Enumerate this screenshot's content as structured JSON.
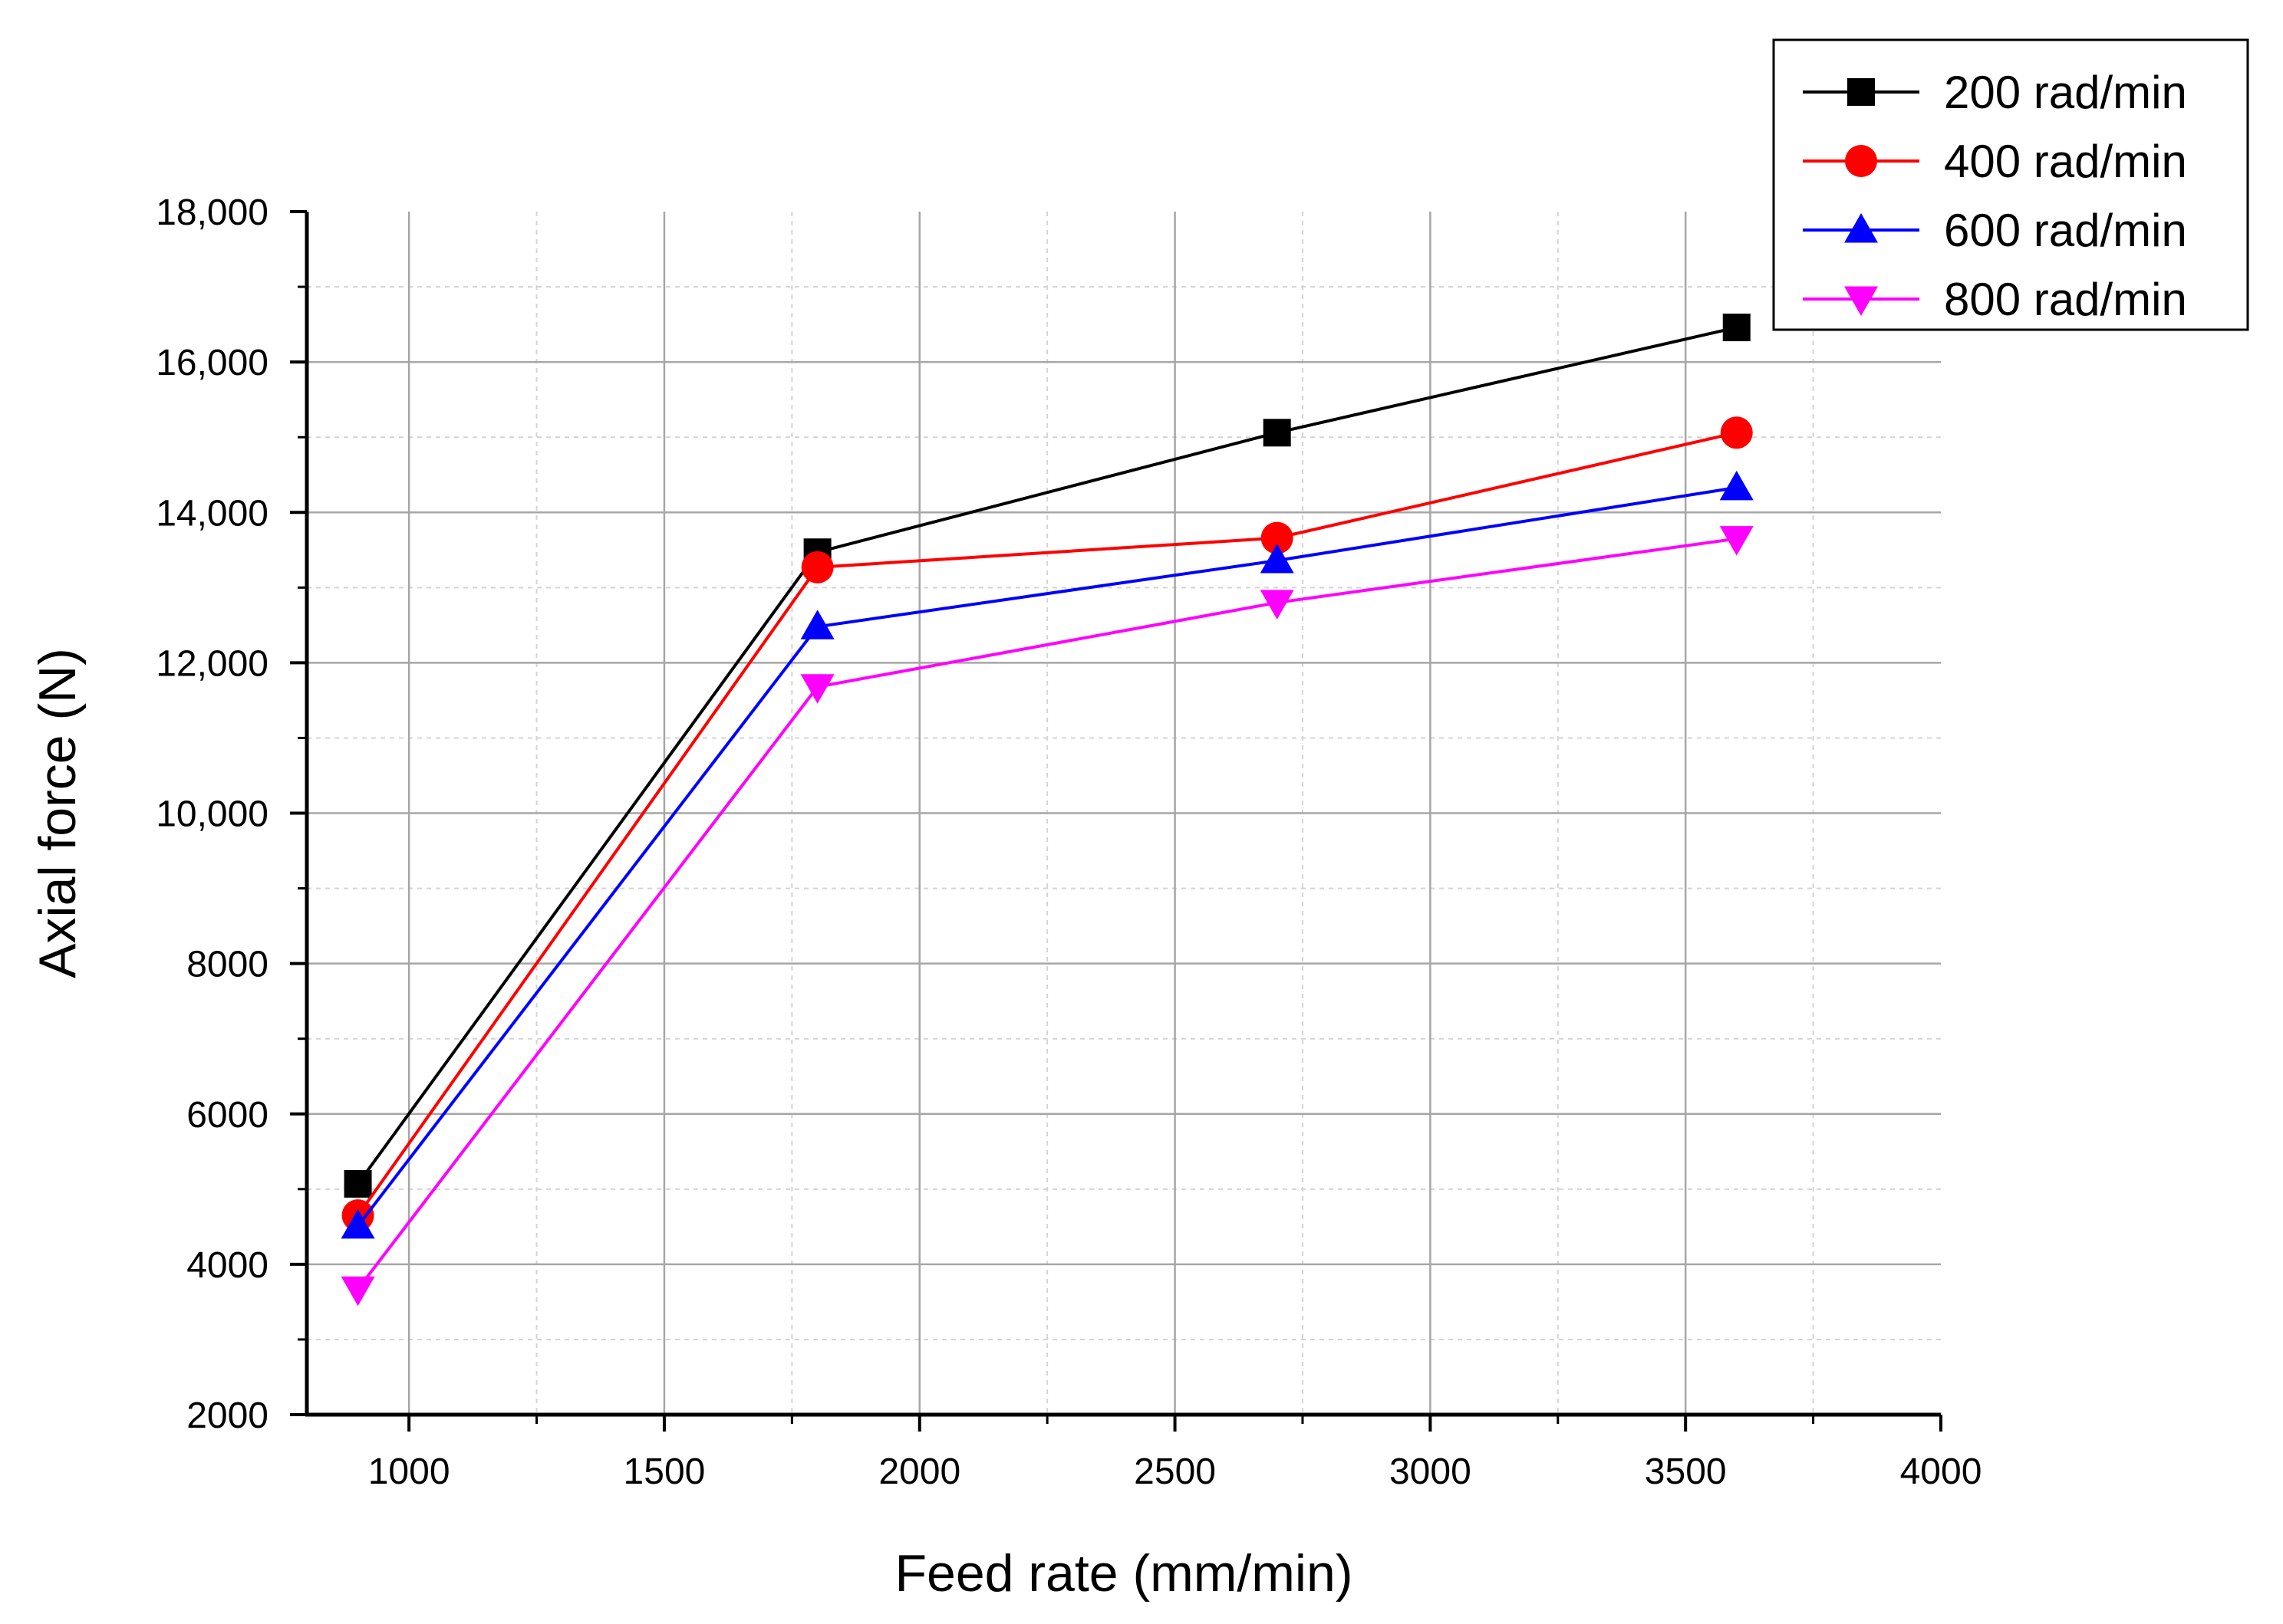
{
  "chart_data": {
    "type": "line",
    "title": "",
    "xlabel": "Feed rate (mm/min)",
    "ylabel": "Axial force (N)",
    "xlim": [
      800,
      4000
    ],
    "ylim": [
      2000,
      18000
    ],
    "x_ticks": [
      1000,
      1500,
      2000,
      2500,
      3000,
      3500,
      4000
    ],
    "x_tick_labels": [
      "1000",
      "1500",
      "2000",
      "2500",
      "3000",
      "3500",
      "4000"
    ],
    "y_ticks": [
      2000,
      4000,
      6000,
      8000,
      10000,
      12000,
      14000,
      16000,
      18000
    ],
    "y_tick_labels": [
      "2000",
      "4000",
      "6000",
      "8000",
      "10,000",
      "12,000",
      "14,000",
      "16,000",
      "18,000"
    ],
    "grid": true,
    "legend_position": "top-right",
    "x": [
      900,
      1800,
      2700,
      3600
    ],
    "series": [
      {
        "name": "200 rad/min",
        "color": "#000000",
        "marker": "square",
        "values": [
          5070,
          13470,
          15060,
          16460
        ]
      },
      {
        "name": "400 rad/min",
        "color": "#ff0000",
        "marker": "circle",
        "values": [
          4650,
          13270,
          13660,
          15060
        ]
      },
      {
        "name": "600 rad/min",
        "color": "#0000ff",
        "marker": "triangle-up",
        "values": [
          4510,
          12480,
          13360,
          14330
        ]
      },
      {
        "name": "800 rad/min",
        "color": "#ff00ff",
        "marker": "triangle-down",
        "values": [
          3670,
          11680,
          12800,
          13650
        ]
      }
    ]
  }
}
